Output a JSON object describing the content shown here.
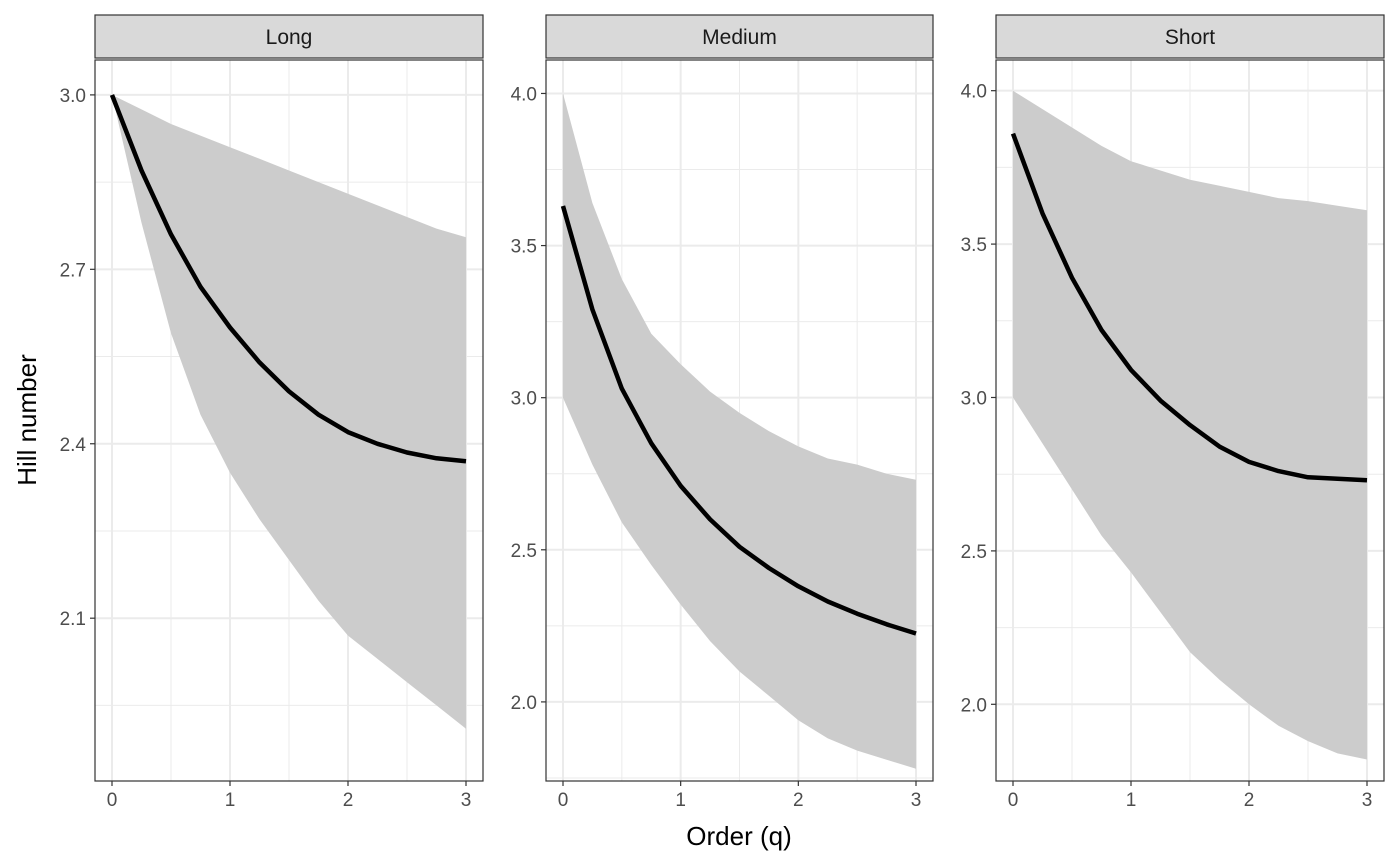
{
  "chart_data": {
    "type": "line",
    "xlabel": "Order (q)",
    "ylabel": "Hill number",
    "x_ticks": [
      "0",
      "1",
      "2",
      "3"
    ],
    "xlim": [
      0,
      3
    ],
    "grid": true,
    "colors": {
      "line": "#000000",
      "ribbon": "#cccccc",
      "strip_fill": "#d9d9d9",
      "grid": "#ebebeb"
    },
    "panels": [
      {
        "label": "Long",
        "ylim": [
          1.82,
          3.06
        ],
        "y_ticks": [
          "3.0",
          "2.7",
          "2.4",
          "2.1"
        ],
        "x": [
          0,
          0.25,
          0.5,
          0.75,
          1,
          1.25,
          1.5,
          1.75,
          2,
          2.25,
          2.5,
          2.75,
          3
        ],
        "y": [
          3.0,
          2.87,
          2.76,
          2.67,
          2.6,
          2.54,
          2.49,
          2.45,
          2.42,
          2.4,
          2.385,
          2.375,
          2.37
        ],
        "upper": [
          3.0,
          2.975,
          2.95,
          2.93,
          2.91,
          2.89,
          2.87,
          2.85,
          2.83,
          2.81,
          2.79,
          2.77,
          2.755
        ],
        "lower": [
          3.0,
          2.78,
          2.59,
          2.45,
          2.35,
          2.27,
          2.2,
          2.13,
          2.07,
          2.03,
          1.99,
          1.95,
          1.91
        ]
      },
      {
        "label": "Medium",
        "ylim": [
          1.74,
          4.11
        ],
        "y_ticks": [
          "4.0",
          "3.5",
          "3.0",
          "2.5",
          "2.0"
        ],
        "x": [
          0,
          0.25,
          0.5,
          0.75,
          1,
          1.25,
          1.5,
          1.75,
          2,
          2.25,
          2.5,
          2.75,
          3
        ],
        "y": [
          3.63,
          3.29,
          3.03,
          2.85,
          2.71,
          2.6,
          2.51,
          2.44,
          2.38,
          2.33,
          2.29,
          2.255,
          2.225
        ],
        "upper": [
          4.0,
          3.64,
          3.39,
          3.21,
          3.11,
          3.02,
          2.95,
          2.89,
          2.84,
          2.8,
          2.78,
          2.75,
          2.73
        ],
        "lower": [
          3.0,
          2.78,
          2.59,
          2.45,
          2.32,
          2.2,
          2.1,
          2.02,
          1.94,
          1.88,
          1.84,
          1.81,
          1.78
        ]
      },
      {
        "label": "Short",
        "ylim": [
          1.75,
          4.1
        ],
        "y_ticks": [
          "4.0",
          "3.5",
          "3.0",
          "2.5",
          "2.0"
        ],
        "x": [
          0,
          0.25,
          0.5,
          0.75,
          1,
          1.25,
          1.5,
          1.75,
          2,
          2.25,
          2.5,
          2.75,
          3
        ],
        "y": [
          3.86,
          3.6,
          3.39,
          3.22,
          3.09,
          2.99,
          2.91,
          2.84,
          2.79,
          2.76,
          2.74,
          2.735,
          2.73
        ],
        "upper": [
          4.0,
          3.94,
          3.88,
          3.82,
          3.77,
          3.74,
          3.71,
          3.69,
          3.67,
          3.65,
          3.64,
          3.625,
          3.61
        ],
        "lower": [
          3.0,
          2.85,
          2.7,
          2.55,
          2.43,
          2.3,
          2.17,
          2.08,
          2.0,
          1.93,
          1.88,
          1.84,
          1.82
        ]
      }
    ]
  }
}
